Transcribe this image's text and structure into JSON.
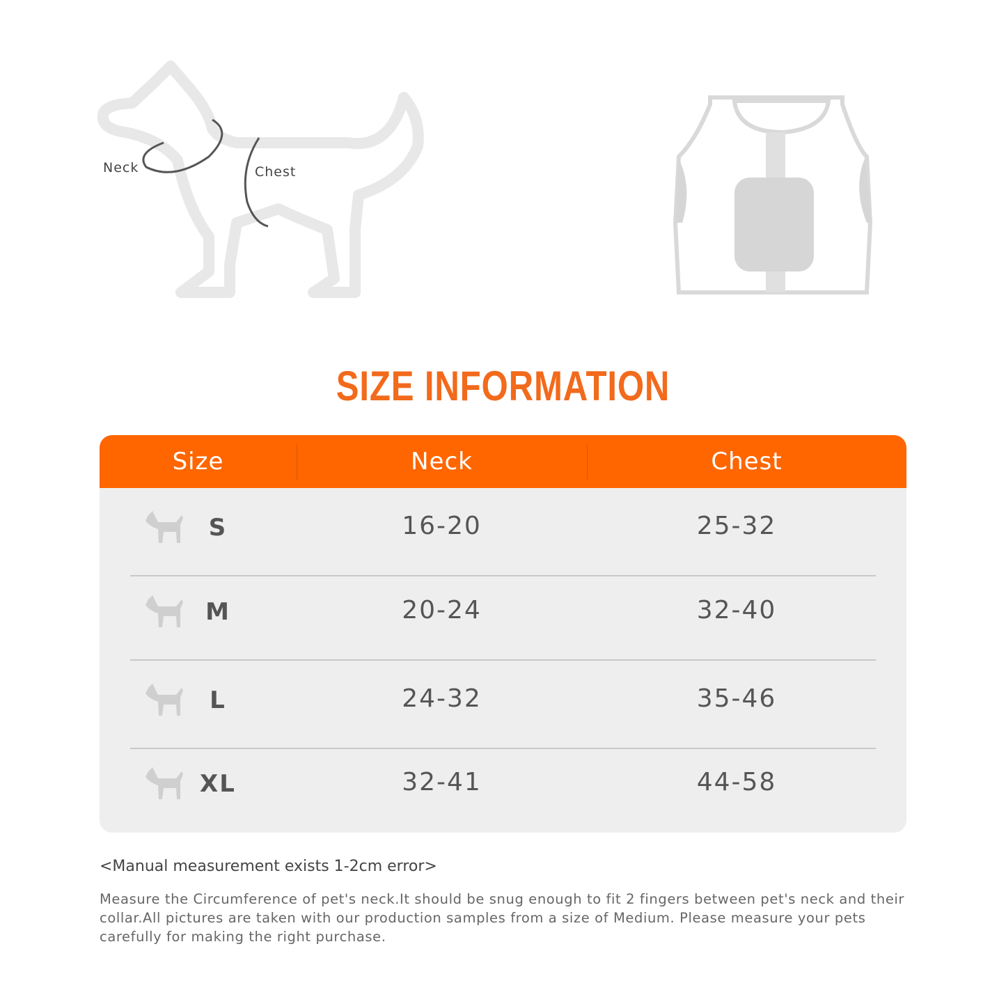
{
  "diagram": {
    "labels": [
      "Neck",
      "Chest"
    ]
  },
  "title": "SIZE INFORMATION",
  "table": {
    "header": [
      "Size",
      "Neck",
      "Chest"
    ],
    "rows": [
      [
        "S",
        "16-20",
        "25-32"
      ],
      [
        "M",
        "20-24",
        "32-40"
      ],
      [
        "L",
        "24-32",
        "35-46"
      ],
      [
        "XL",
        "32-41",
        "44-58"
      ]
    ]
  },
  "note": "<Manual measurement exists 1-2cm  error>",
  "description": "Measure the Circumference of pet's neck.It should be snug enough to fit 2 fingers between pet's neck and their collar.All pictures are taken with our production samples from a size of Medium. Please measure your pets carefully for making the right purchase."
}
